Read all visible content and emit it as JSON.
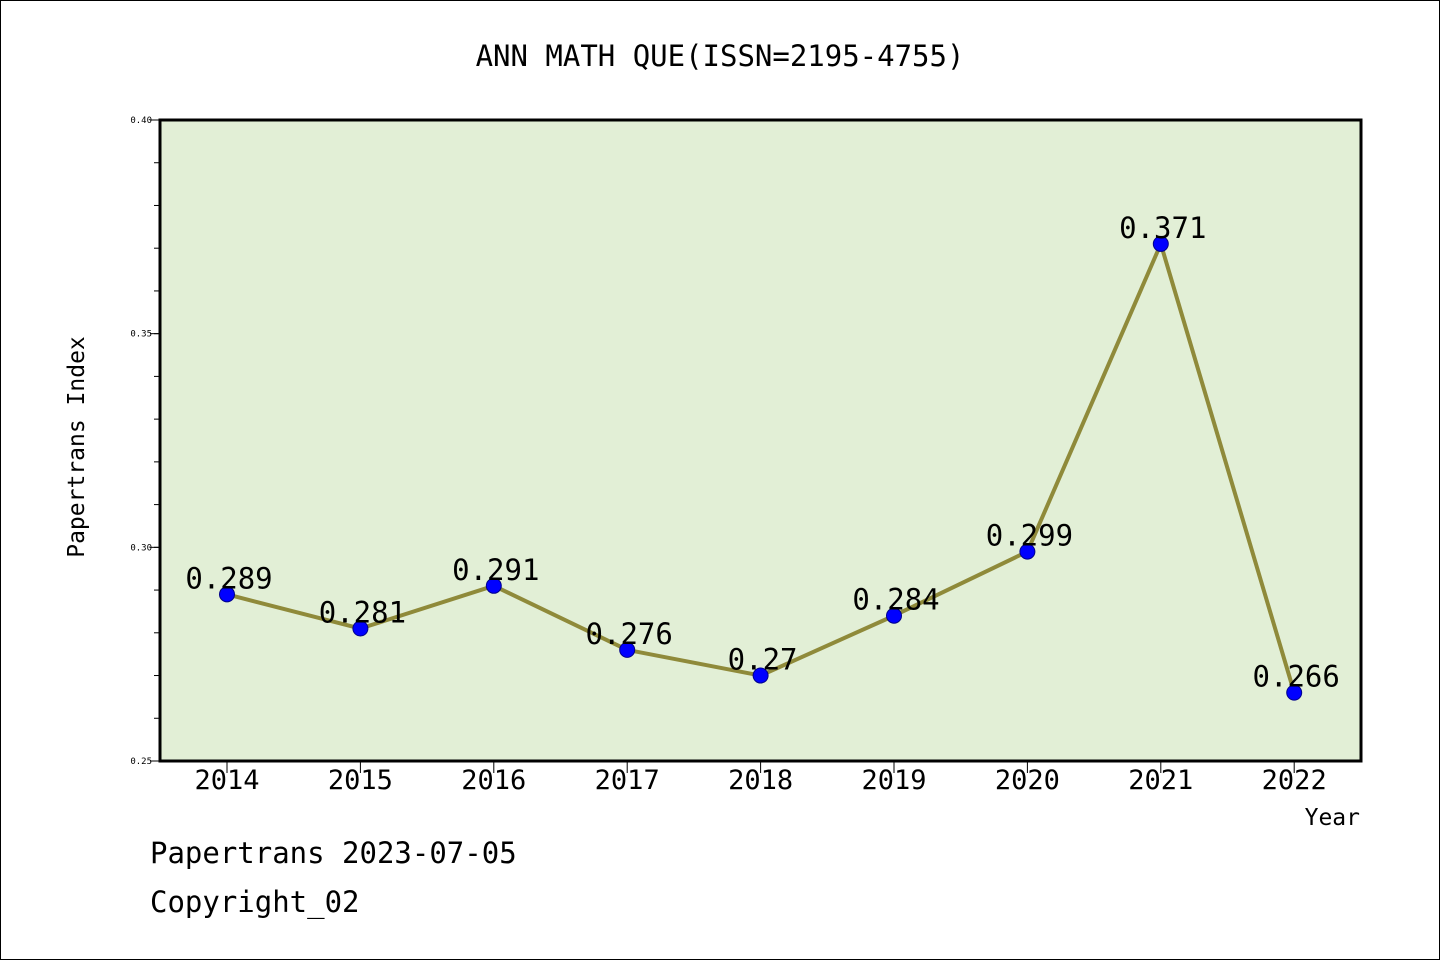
{
  "chart_data": {
    "type": "line",
    "title": "ANN MATH QUE(ISSN=2195-4755)",
    "xlabel": "Year",
    "ylabel": "Papertrans Index",
    "categories": [
      "2014",
      "2015",
      "2016",
      "2017",
      "2018",
      "2019",
      "2020",
      "2021",
      "2022"
    ],
    "values": [
      0.289,
      0.281,
      0.291,
      0.276,
      0.27,
      0.284,
      0.299,
      0.371,
      0.266
    ],
    "data_labels": [
      "0.289",
      "0.281",
      "0.291",
      "0.276",
      "0.27",
      "0.284",
      "0.299",
      "0.371",
      "0.266"
    ],
    "ylim": [
      0.25,
      0.4
    ],
    "y_ticks": [
      0.25,
      0.3,
      0.35,
      0.4
    ],
    "y_tick_labels": [
      "0.25",
      "0.30",
      "0.35",
      "0.40"
    ],
    "y_minor_tick_step": 0.01,
    "grid": false,
    "legend": "none",
    "colors": {
      "plot_background": "#e2efd6",
      "line": "#8f8a3a",
      "marker": "#0000ff",
      "marker_edge": "#00008b",
      "axis": "#000000"
    }
  },
  "footer": {
    "date_line": "Papertrans 2023-07-05",
    "copyright": "Copyright_02"
  }
}
